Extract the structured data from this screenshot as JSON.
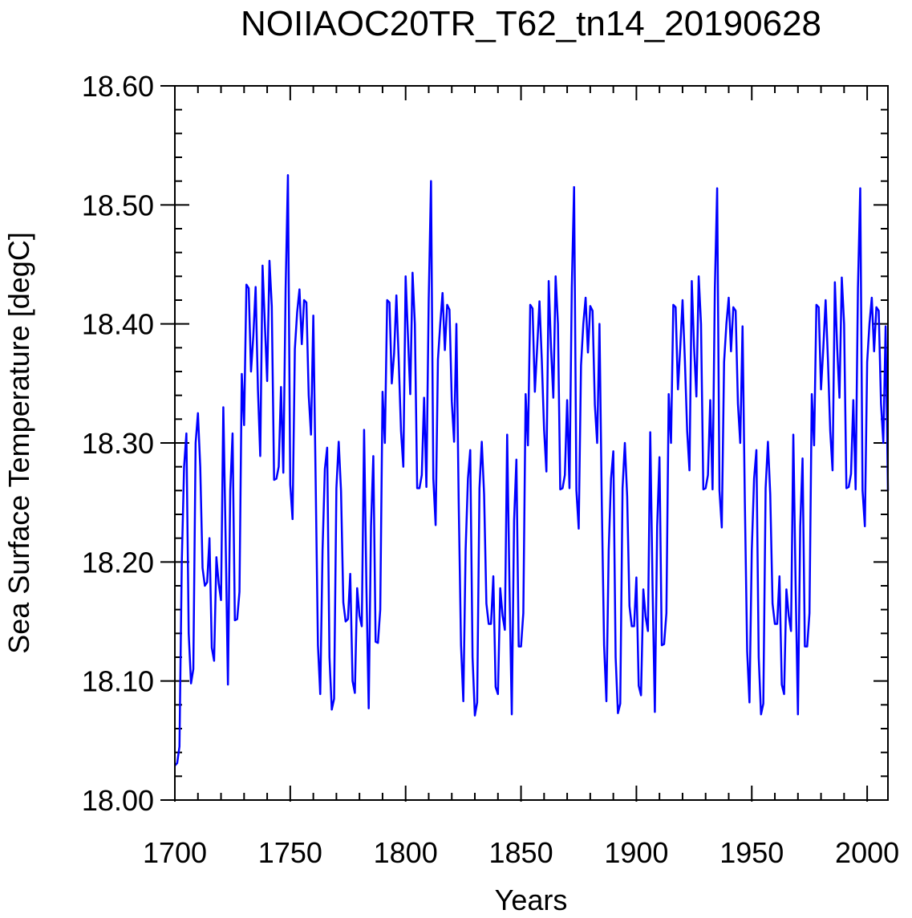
{
  "chart_data": {
    "type": "line",
    "title": "NOIIAOC20TR_T62_tn14_20190628",
    "xlabel": "Years",
    "ylabel": "Sea Surface Temperature [degC]",
    "xlim": [
      1700,
      2009
    ],
    "ylim": [
      18.0,
      18.6
    ],
    "x_ticks": [
      1700,
      1750,
      1800,
      1850,
      1900,
      1950,
      2000
    ],
    "x_tick_labels": [
      "1700",
      "1750",
      "1800",
      "1850",
      "1900",
      "1950",
      "2000"
    ],
    "y_ticks": [
      18.0,
      18.1,
      18.2,
      18.3,
      18.4,
      18.5,
      18.6
    ],
    "y_tick_labels": [
      "18.00",
      "18.10",
      "18.20",
      "18.30",
      "18.40",
      "18.50",
      "18.60"
    ],
    "grid": false,
    "legend": "none",
    "line_color": "#0000ff",
    "series": [
      {
        "x_start": 1700,
        "x_step": 1,
        "values": [
          18.029,
          18.031,
          18.045,
          18.2,
          18.28,
          18.308,
          18.14,
          18.098,
          18.11,
          18.3,
          18.325,
          18.28,
          18.195,
          18.18,
          18.183,
          18.22,
          18.128,
          18.117,
          18.204,
          18.182,
          18.168,
          18.33,
          18.22,
          18.097,
          18.26,
          18.308,
          18.151,
          18.152,
          18.175,
          18.358,
          18.315,
          18.433,
          18.43,
          18.36,
          18.39,
          18.431,
          18.345,
          18.289,
          18.449,
          18.4,
          18.352,
          18.453,
          18.415,
          18.269,
          18.27,
          18.28,
          18.347,
          18.275,
          18.43,
          18.525,
          18.265,
          18.236,
          18.379,
          18.41,
          18.429,
          18.383,
          18.42,
          18.418,
          18.34,
          18.307,
          18.407,
          18.27,
          18.13,
          18.089,
          18.21,
          18.278,
          18.296,
          18.12,
          18.076,
          18.085,
          18.262,
          18.301,
          18.26,
          18.166,
          18.15,
          18.152,
          18.19,
          18.1,
          18.09,
          18.178,
          18.155,
          18.146,
          18.311,
          18.18,
          18.077,
          18.23,
          18.289,
          18.133,
          18.132,
          18.16,
          18.343,
          18.3,
          18.42,
          18.418,
          18.35,
          18.375,
          18.424,
          18.37,
          18.31,
          18.28,
          18.44,
          18.39,
          18.341,
          18.443,
          18.4,
          18.262,
          18.262,
          18.273,
          18.338,
          18.263,
          18.42,
          18.52,
          18.27,
          18.231,
          18.37,
          18.4,
          18.426,
          18.378,
          18.416,
          18.412,
          18.335,
          18.301,
          18.4,
          18.25,
          18.13,
          18.083,
          18.21,
          18.27,
          18.294,
          18.12,
          18.071,
          18.082,
          18.262,
          18.301,
          18.257,
          18.165,
          18.148,
          18.148,
          18.188,
          18.095,
          18.089,
          18.178,
          18.155,
          18.143,
          18.307,
          18.18,
          18.072,
          18.235,
          18.286,
          18.129,
          18.129,
          18.157,
          18.341,
          18.298,
          18.416,
          18.413,
          18.343,
          18.38,
          18.419,
          18.37,
          18.311,
          18.276,
          18.436,
          18.38,
          18.338,
          18.44,
          18.4,
          18.261,
          18.262,
          18.273,
          18.336,
          18.262,
          18.43,
          18.515,
          18.26,
          18.228,
          18.365,
          18.4,
          18.422,
          18.376,
          18.415,
          18.411,
          18.332,
          18.3,
          18.4,
          18.25,
          18.13,
          18.083,
          18.21,
          18.27,
          18.293,
          18.12,
          18.073,
          18.081,
          18.262,
          18.3,
          18.255,
          18.163,
          18.146,
          18.146,
          18.187,
          18.096,
          18.088,
          18.177,
          18.154,
          18.142,
          18.309,
          18.18,
          18.074,
          18.23,
          18.288,
          18.13,
          18.131,
          18.157,
          18.341,
          18.3,
          18.416,
          18.414,
          18.345,
          18.38,
          18.42,
          18.37,
          18.31,
          18.277,
          18.436,
          18.38,
          18.339,
          18.44,
          18.4,
          18.261,
          18.262,
          18.273,
          18.336,
          18.261,
          18.43,
          18.514,
          18.26,
          18.229,
          18.368,
          18.4,
          18.422,
          18.377,
          18.414,
          18.411,
          18.333,
          18.3,
          18.398,
          18.25,
          18.125,
          18.082,
          18.21,
          18.27,
          18.294,
          18.12,
          18.072,
          18.081,
          18.262,
          18.301,
          18.257,
          18.165,
          18.148,
          18.148,
          18.188,
          18.097,
          18.089,
          18.177,
          18.155,
          18.142,
          18.307,
          18.18,
          18.072,
          18.23,
          18.287,
          18.129,
          18.129,
          18.157,
          18.341,
          18.298,
          18.416,
          18.414,
          18.345,
          18.38,
          18.42,
          18.37,
          18.31,
          18.277,
          18.435,
          18.38,
          18.338,
          18.439,
          18.4,
          18.262,
          18.263,
          18.274,
          18.336,
          18.261,
          18.43,
          18.514,
          18.26,
          18.23,
          18.368,
          18.4,
          18.422,
          18.377,
          18.414,
          18.411,
          18.333,
          18.3,
          18.398,
          18.26
        ]
      }
    ]
  }
}
